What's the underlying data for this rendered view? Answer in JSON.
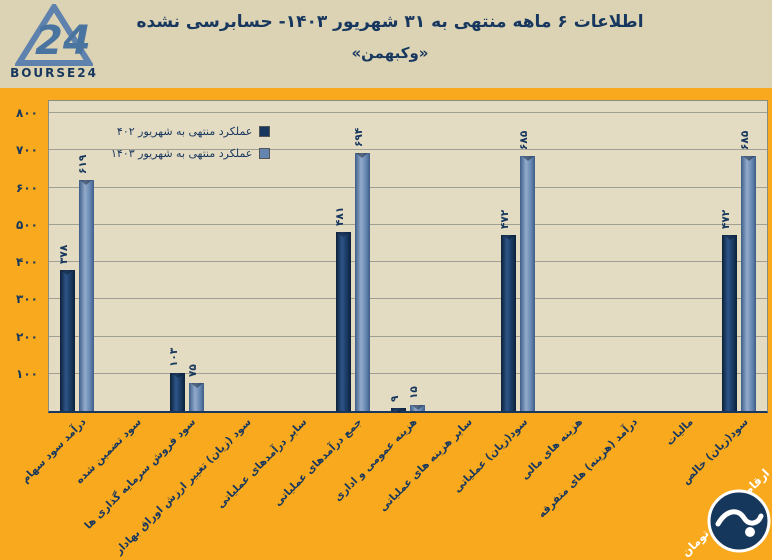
{
  "header": {
    "title": "اطلاعات ۶ ماهه منتهی به ۳۱ شهریور ۱۴۰۳- حسابرسی نشده",
    "subtitle": "«وکبهمن»",
    "logo_text": "BOURSE24",
    "logo_number": "24"
  },
  "chart_data": {
    "type": "bar",
    "rtl_text": true,
    "title": "اطلاعات ۶ ماهه منتهی به ۳۱ شهریور ۱۴۰۳- حسابرسی نشده «وکبهمن»",
    "unit_note": "ارقام : میلیارد تومان",
    "categories": [
      "درآمد سود سهام",
      "سود تضمین شده",
      "سود فروش سرمایه گذاری ها",
      "سود (زیان) تغییر ارزش اوراق بهادار",
      "سایر درآمدهای عملیاتی",
      "جمع درآمدهای عملیاتی",
      "هزینه عمومی و اداری",
      "سایر هزینه های عملیاتی",
      "سود(زیان) عملیاتی",
      "هزینه های مالی",
      "درآمد (هزینه) های متفرقه",
      "مالیات",
      "سود(زیان) خالص"
    ],
    "series": [
      {
        "name": "عملکرد منتهی به شهریور ۴۰۲",
        "color": "#17375E",
        "values": [
          378,
          0,
          103,
          0,
          0,
          481,
          9,
          0,
          472,
          0,
          0,
          0,
          472
        ],
        "labels": [
          "۳۷۸",
          "",
          "۱۰۳",
          "",
          "",
          "۴۸۱",
          "۹",
          "",
          "۴۷۲",
          "",
          "",
          "",
          "۴۷۲"
        ]
      },
      {
        "name": "عملکرد منتهی به شهریور ۱۴۰۳",
        "color": "#6485B0",
        "values": [
          619,
          0,
          75,
          0,
          0,
          694,
          15,
          0,
          685,
          0,
          0,
          0,
          685
        ],
        "labels": [
          "۶۱۹",
          "",
          "۷۵",
          "",
          "",
          "۶۹۴",
          "۱۵",
          "",
          "۶۸۵",
          "",
          "",
          "",
          "۶۸۵"
        ]
      }
    ],
    "y_ticks": [
      "۸۰۰",
      "۷۰۰",
      "۶۰۰",
      "۵۰۰",
      "۴۰۰",
      "۳۰۰",
      "۲۰۰",
      "۱۰۰"
    ],
    "ylim": [
      0,
      800
    ],
    "grid": "horizontal",
    "legend_position": "inside-top-left",
    "colors": {
      "background": "#F8A91E",
      "header_band": "#DBD3B4",
      "plot_background": "#E4DCC2",
      "text": "#17375E"
    }
  }
}
